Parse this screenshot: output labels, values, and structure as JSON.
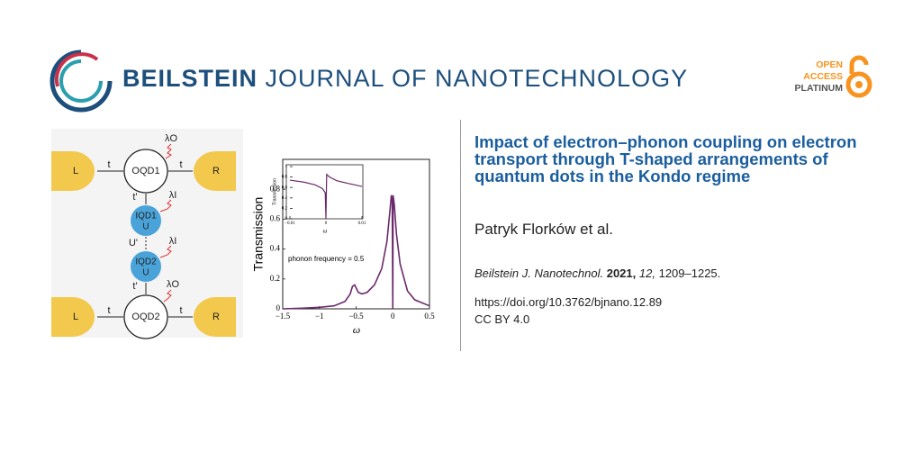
{
  "header": {
    "journal_brand": "BEILSTEIN",
    "journal_name": "JOURNAL OF NANOTECHNOLOGY",
    "badge": [
      "OPEN",
      "ACCESS",
      "PLATINUM"
    ]
  },
  "figure": {
    "diagram": {
      "top_row": {
        "left": "L",
        "t_left": "t",
        "node": "OQD1",
        "t_right": "t",
        "right": "R"
      },
      "bottom_row": {
        "left": "L",
        "t_left": "t",
        "node": "OQD2",
        "t_right": "t",
        "right": "R"
      },
      "lambda_top": "λO",
      "t_prime_top": "t'",
      "lambda_i_top": "λI",
      "iqd1": [
        "IQD1",
        "U"
      ],
      "u_prime": "U'",
      "lambda_i_bottom": "λI",
      "iqd2": [
        "IQD2",
        "U"
      ],
      "t_prime_bottom": "t'",
      "lambda_bottom": "λO"
    },
    "chart": {
      "type": "line",
      "ylabel": "Transmission",
      "xlabel": "ω",
      "annotation": "phonon frequency = 0.5",
      "color": "#6b2a6b",
      "xlim": [
        -1.5,
        0.5
      ],
      "ylim": [
        0,
        1
      ],
      "xticks": [
        {
          "value": -1.5,
          "label": "−1.5"
        },
        {
          "value": -1,
          "label": "−1"
        },
        {
          "value": -0.5,
          "label": "−0.5"
        },
        0,
        0.5
      ],
      "yticks": [
        0,
        0.2,
        0.4,
        0.6,
        0.8
      ],
      "x": [
        -1.5,
        -1.2,
        -1.0,
        -0.8,
        -0.65,
        -0.58,
        -0.55,
        -0.52,
        -0.5,
        -0.47,
        -0.42,
        -0.35,
        -0.25,
        -0.15,
        -0.08,
        -0.04,
        -0.02,
        -0.008,
        0,
        0.004,
        0.02,
        0.05,
        0.1,
        0.2,
        0.3,
        0.5
      ],
      "values": [
        0,
        0.005,
        0.01,
        0.02,
        0.05,
        0.1,
        0.15,
        0.16,
        0.14,
        0.11,
        0.1,
        0.11,
        0.16,
        0.27,
        0.45,
        0.65,
        0.76,
        0.73,
        0,
        0.76,
        0.7,
        0.5,
        0.3,
        0.12,
        0.06,
        0.02
      ],
      "inset": {
        "ylabel": "Transmission",
        "xlabel": "ω",
        "xlim": [
          -0.01,
          0.01
        ],
        "ylim": [
          0,
          1
        ],
        "xticks": [
          {
            "value": -0.01,
            "label": "−0.01"
          },
          0,
          0.01
        ],
        "yticks": [
          0,
          0.2,
          0.4,
          0.6,
          0.8,
          1
        ],
        "x": [
          -0.01,
          -0.006,
          -0.003,
          -0.001,
          -0.0002,
          0,
          0.0002,
          0.001,
          0.003,
          0.006,
          0.01
        ],
        "values": [
          0.74,
          0.7,
          0.65,
          0.58,
          0.5,
          0,
          0.85,
          0.8,
          0.73,
          0.68,
          0.62
        ]
      }
    }
  },
  "article": {
    "title": "Impact of electron–phonon coupling on electron transport through T-shaped arrangements of quantum dots in the Kondo regime",
    "authors": "Patryk Florków et al.",
    "citation": {
      "journal": "Beilstein J. Nanotechnol.",
      "year": "2021,",
      "volume": "12,",
      "pages": "1209–1225."
    },
    "doi": "https://doi.org/10.3762/bjnano.12.89",
    "license": "CC BY 4.0"
  }
}
